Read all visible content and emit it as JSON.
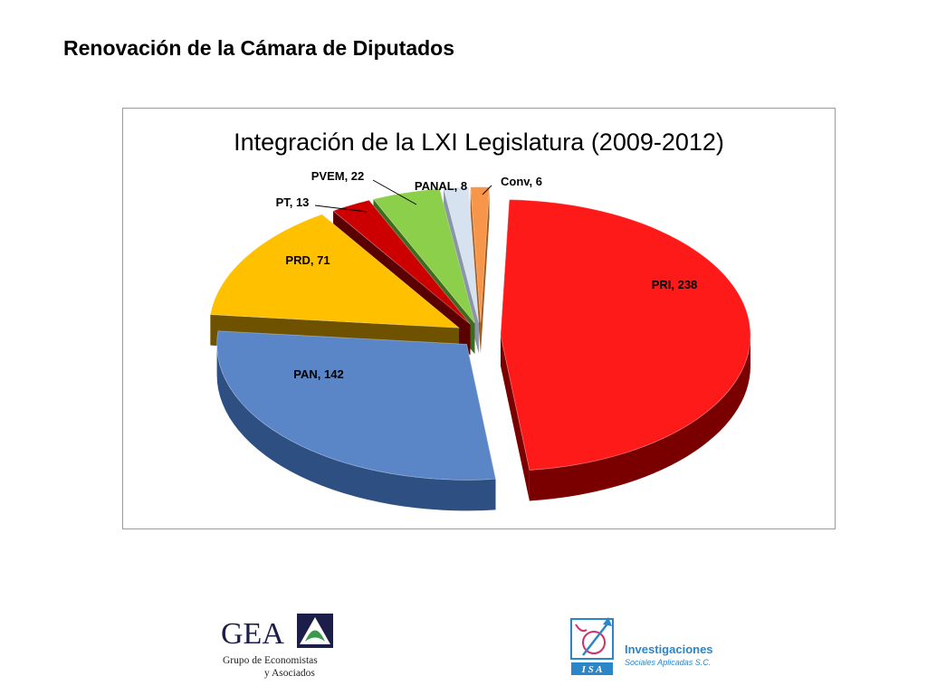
{
  "slide": {
    "title": "Renovación de la Cámara de Diputados"
  },
  "chart_data": {
    "type": "pie",
    "style": "exploded-3d",
    "title": "Integración de la LXI Legislatura (2009-2012)",
    "slices": [
      {
        "name": "PRI",
        "value": 238,
        "label": "PRI, 238",
        "color": "#ff1a1a",
        "side_color": "#7a0000"
      },
      {
        "name": "PAN",
        "value": 142,
        "label": "PAN, 142",
        "color": "#5a86c8",
        "side_color": "#2e4f82"
      },
      {
        "name": "PRD",
        "value": 71,
        "label": "PRD, 71",
        "color": "#ffc000",
        "side_color": "#6e5200"
      },
      {
        "name": "PT",
        "value": 13,
        "label": "PT, 13",
        "color": "#cc0000",
        "side_color": "#5a0000"
      },
      {
        "name": "PVEM",
        "value": 22,
        "label": "PVEM, 22",
        "color": "#8ccf4a",
        "side_color": "#3f6b1e"
      },
      {
        "name": "PANAL",
        "value": 8,
        "label": "PANAL, 8",
        "color": "#d6e2f0",
        "side_color": "#8a96a8"
      },
      {
        "name": "Conv",
        "value": 6,
        "label": "Conv, 6",
        "color": "#f7964a",
        "side_color": "#a35a1d"
      }
    ],
    "legend": "none"
  },
  "logos": {
    "gea": {
      "name": "GEA",
      "line1": "Grupo de Economistas",
      "line2": "y Asociados"
    },
    "isa": {
      "name": "Investigaciones",
      "subtitle": "Sociales Aplicadas S.C."
    }
  }
}
